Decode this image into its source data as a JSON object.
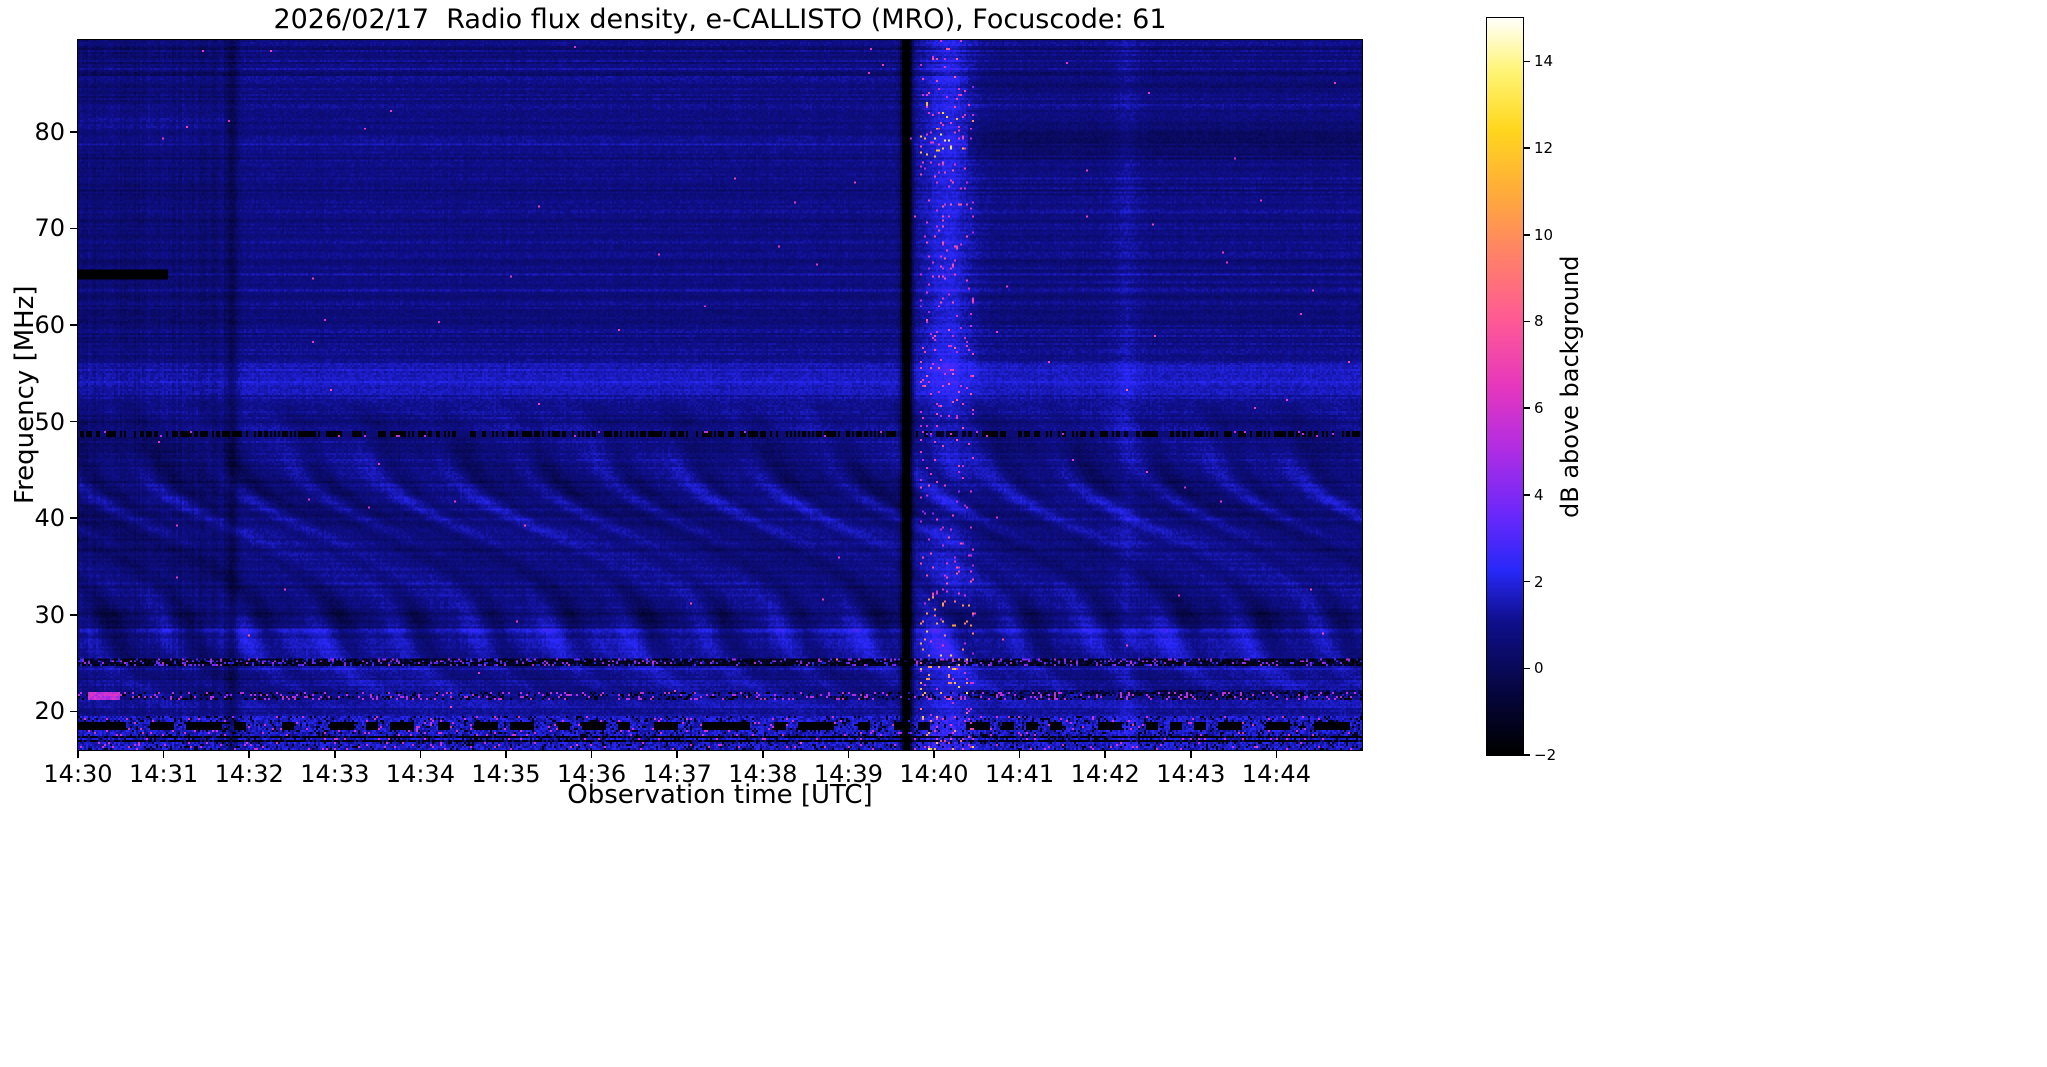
{
  "chart_data": {
    "type": "heatmap",
    "title": "2026/02/17  Radio flux density, e-CALLISTO (MRO), Focuscode: 61",
    "xlabel": "Observation time [UTC]",
    "ylabel": "Frequency [MHz]",
    "colorbar_label": "dB above background",
    "x_ticks": [
      "14:30",
      "14:31",
      "14:32",
      "14:33",
      "14:34",
      "14:35",
      "14:36",
      "14:37",
      "14:38",
      "14:39",
      "14:40",
      "14:41",
      "14:42",
      "14:43",
      "14:44"
    ],
    "x_tick_minutes": [
      0,
      1,
      2,
      3,
      4,
      5,
      6,
      7,
      8,
      9,
      10,
      11,
      12,
      13,
      14
    ],
    "x_range_minutes": [
      0,
      15
    ],
    "x_start_time": "14:30",
    "y_ticks": [
      20,
      30,
      40,
      50,
      60,
      70,
      80
    ],
    "freq_range_mhz": [
      16,
      89.5
    ],
    "colorbar_ticks": [
      "−2",
      "0",
      "2",
      "4",
      "6",
      "8",
      "10",
      "12",
      "14"
    ],
    "colorbar_tick_values": [
      -2,
      0,
      2,
      4,
      6,
      8,
      10,
      12,
      14
    ],
    "value_range_db": [
      -2,
      15
    ],
    "grid": false,
    "legend": "colorbar-right",
    "colormap_stops": [
      [
        0.0,
        "#000000"
      ],
      [
        0.08,
        "#05053c"
      ],
      [
        0.18,
        "#0f0f8c"
      ],
      [
        0.25,
        "#2828f8"
      ],
      [
        0.33,
        "#6e28fa"
      ],
      [
        0.42,
        "#b42de1"
      ],
      [
        0.5,
        "#e637be"
      ],
      [
        0.59,
        "#ff5a96"
      ],
      [
        0.68,
        "#ff8268"
      ],
      [
        0.76,
        "#ffaa3c"
      ],
      [
        0.85,
        "#ffd71e"
      ],
      [
        0.93,
        "#fff578"
      ],
      [
        1.0,
        "#fffffa"
      ]
    ],
    "features": {
      "background_level_db": 0.85,
      "bright_band_center_mhz": 54.2,
      "wavy_interference_range_mhz": [
        19.3,
        52.5
      ],
      "dashed_rfi_line_mhz": 48.7,
      "speckle_rfi_lines_mhz": [
        25.1,
        21.6,
        18.5
      ],
      "bright_line_mhz": 78.6,
      "dark_line_mhz": 62.9,
      "black_segment": {
        "freq_mhz": 65.3,
        "t_end_min": 1.05
      },
      "left_dark_region_end_min": 1.72,
      "dark_column_min": 1.8,
      "black_column_min": 9.68,
      "bright_column": {
        "center_min": 10.15,
        "width_min": 0.3
      },
      "faint_bright_column_min": 12.25,
      "post_event_banding_after_min": 10.4
    }
  }
}
